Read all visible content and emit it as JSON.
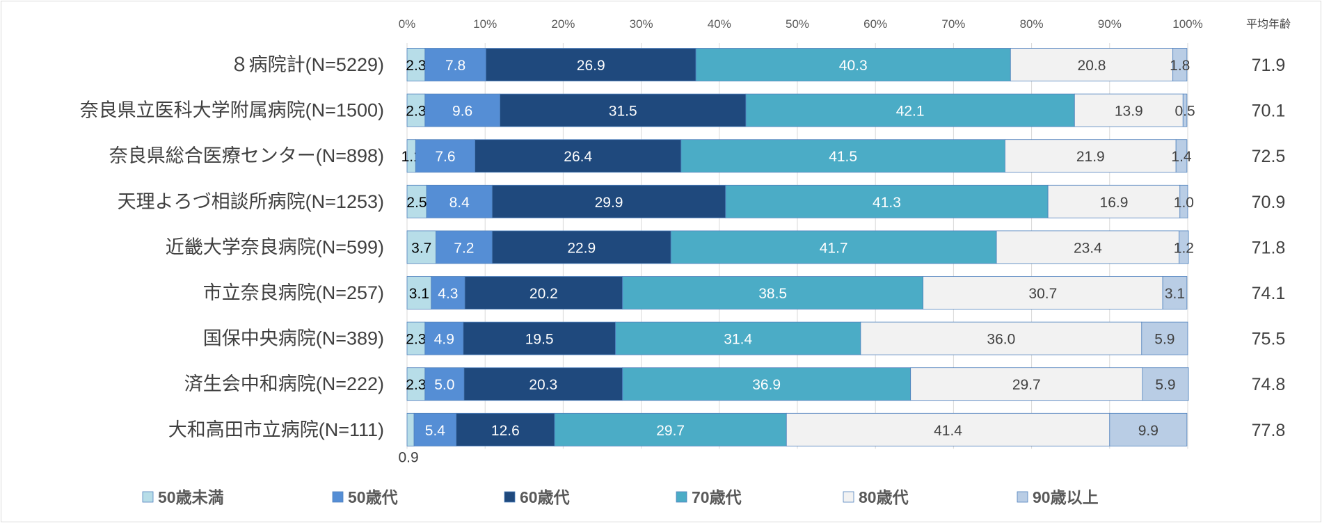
{
  "chart_data": {
    "type": "bar",
    "orientation": "horizontal",
    "stacked": "percent",
    "categories": [
      "８病院計(N=5229)",
      "奈良県立医科大学附属病院(N=1500)",
      "奈良県総合医療センター(N=898)",
      "天理よろづ相談所病院(N=1253)",
      "近畿大学奈良病院(N=599)",
      "市立奈良病院(N=257)",
      "国保中央病院(N=389)",
      "済生会中和病院(N=222)",
      "大和高田市立病院(N=111)"
    ],
    "series": [
      {
        "name": "50歳未満",
        "color": "#b7dde8",
        "label_color": "#000000",
        "values": [
          2.3,
          2.3,
          1.1,
          2.5,
          3.7,
          3.1,
          2.3,
          2.3,
          0.9
        ]
      },
      {
        "name": "50歳代",
        "color": "#558ed5",
        "label_color": "#ffffff",
        "values": [
          7.8,
          9.6,
          7.6,
          8.4,
          7.2,
          4.3,
          4.9,
          5.0,
          5.4
        ]
      },
      {
        "name": "60歳代",
        "color": "#1f497d",
        "label_color": "#ffffff",
        "values": [
          26.9,
          31.5,
          26.4,
          29.9,
          22.9,
          20.2,
          19.5,
          20.3,
          12.6
        ]
      },
      {
        "name": "70歳代",
        "color": "#4bacc6",
        "label_color": "#ffffff",
        "values": [
          40.3,
          42.1,
          41.5,
          41.3,
          41.7,
          38.5,
          31.4,
          36.9,
          29.7
        ]
      },
      {
        "name": "80歳代",
        "color": "#f2f2f2",
        "label_color": "#404040",
        "values": [
          20.8,
          13.9,
          21.9,
          16.9,
          23.4,
          30.7,
          36.0,
          29.7,
          41.4
        ]
      },
      {
        "name": "90歳以上",
        "color": "#b9cde5",
        "label_color": "#404040",
        "values": [
          1.8,
          0.5,
          1.4,
          1.0,
          1.2,
          3.1,
          5.9,
          5.9,
          9.9
        ]
      }
    ],
    "average_age": {
      "header": "平均年齢",
      "values": [
        "71.9",
        "70.1",
        "72.5",
        "70.9",
        "71.8",
        "74.1",
        "75.5",
        "74.8",
        "77.8"
      ]
    },
    "xlim": [
      0,
      100
    ],
    "xticks": [
      "0%",
      "10%",
      "20%",
      "30%",
      "40%",
      "50%",
      "60%",
      "70%",
      "80%",
      "90%",
      "100%"
    ],
    "grid": true,
    "legend": "bottom"
  }
}
